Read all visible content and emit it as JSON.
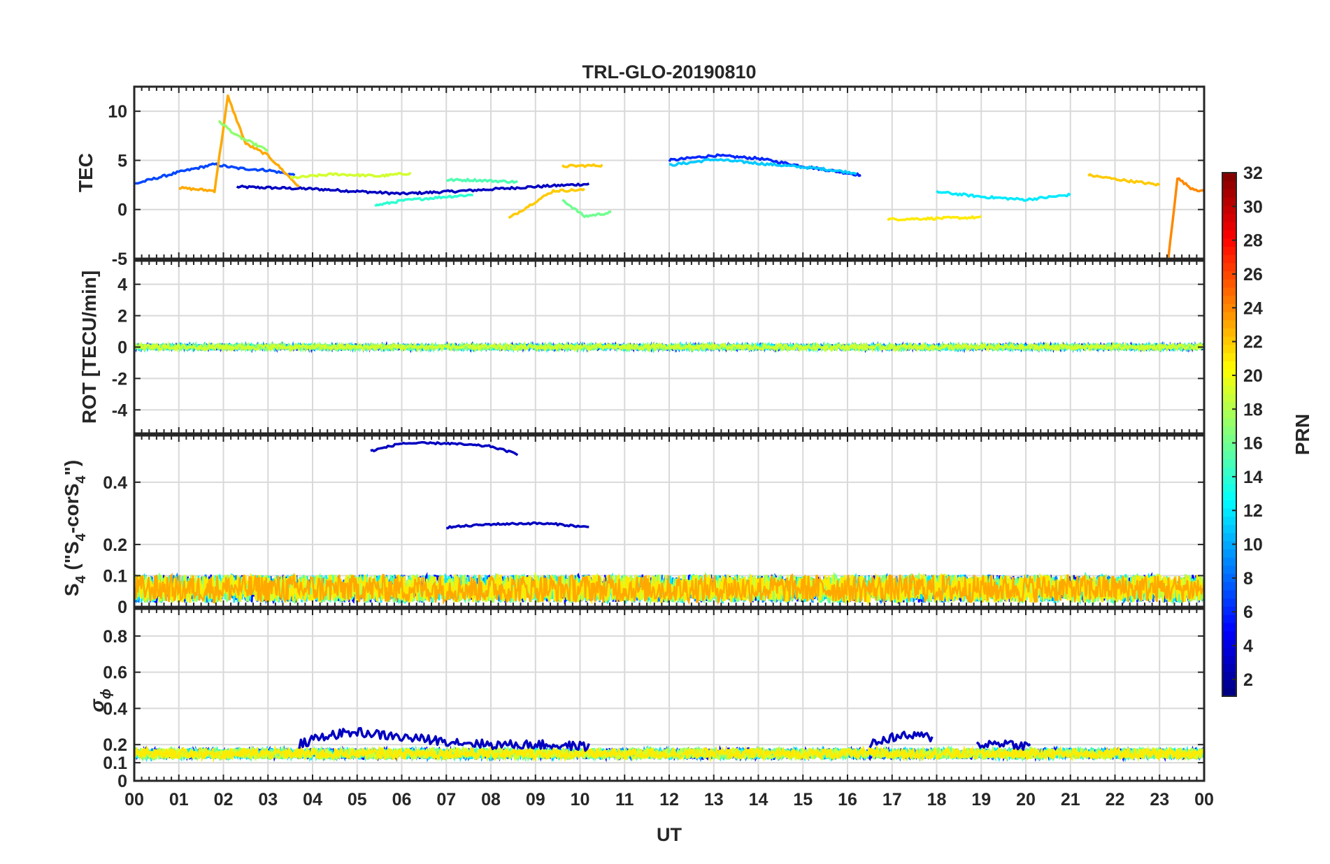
{
  "title": "TRL-GLO-20190810",
  "xlabel": "UT",
  "x_ticks": [
    "00",
    "01",
    "02",
    "03",
    "04",
    "05",
    "06",
    "07",
    "08",
    "09",
    "10",
    "11",
    "12",
    "13",
    "14",
    "15",
    "16",
    "17",
    "18",
    "19",
    "20",
    "21",
    "22",
    "23",
    "00"
  ],
  "colorbar": {
    "label": "PRN",
    "range": [
      1,
      32
    ],
    "ticks": [
      "2",
      "4",
      "6",
      "8",
      "10",
      "12",
      "14",
      "16",
      "18",
      "20",
      "22",
      "24",
      "26",
      "28",
      "30",
      "32"
    ],
    "colormap": "jet"
  },
  "chart_data": [
    {
      "type": "line",
      "name": "tec",
      "ylabel": "TEC",
      "xlim": [
        0,
        24
      ],
      "ylim": [
        -5,
        12.5
      ],
      "yticks": [
        "-5",
        "0",
        "5",
        "10"
      ],
      "grid": true,
      "series": [
        {
          "prn": 3,
          "x": [
            2.3,
            4,
            6,
            7.4,
            8.9,
            10.2
          ],
          "values": [
            2.3,
            2.1,
            1.6,
            1.9,
            2.3,
            2.6
          ]
        },
        {
          "prn": 7,
          "x": [
            0,
            1,
            1.8,
            2.3,
            3,
            3.6
          ],
          "values": [
            2.6,
            3.8,
            4.6,
            4.2,
            4.0,
            3.5
          ]
        },
        {
          "prn": 6,
          "x": [
            12,
            13,
            14,
            15,
            16.3
          ],
          "values": [
            5.0,
            5.5,
            5.2,
            4.4,
            3.5
          ]
        },
        {
          "prn": 11,
          "x": [
            12,
            13,
            14,
            15.5,
            16.2
          ],
          "values": [
            4.5,
            5.1,
            4.7,
            4.1,
            3.7
          ]
        },
        {
          "prn": 23,
          "x": [
            1,
            1.8,
            2.1,
            2.5,
            3,
            3.7
          ],
          "values": [
            2.2,
            1.9,
            11.5,
            6.7,
            5.5,
            2.3
          ]
        },
        {
          "prn": 17,
          "x": [
            1.9,
            2.3,
            3
          ],
          "values": [
            9.0,
            7.5,
            6.0
          ]
        },
        {
          "prn": 19,
          "x": [
            3.5,
            4.5,
            5.5,
            6.2
          ],
          "values": [
            3.2,
            3.6,
            3.4,
            3.7
          ]
        },
        {
          "prn": 14,
          "x": [
            5.4,
            6,
            7,
            7.6
          ],
          "values": [
            0.4,
            0.9,
            1.3,
            1.5
          ]
        },
        {
          "prn": 15,
          "x": [
            7,
            7.6,
            8.6
          ],
          "values": [
            3.0,
            3.0,
            2.8
          ]
        },
        {
          "prn": 22,
          "x": [
            8.4,
            9,
            9.4,
            10.1
          ],
          "values": [
            -0.9,
            0.8,
            1.9,
            2.0
          ]
        },
        {
          "prn": 16,
          "x": [
            9.6,
            10.1,
            10.7
          ],
          "values": [
            1.0,
            -0.7,
            -0.3
          ]
        },
        {
          "prn": 22,
          "x": [
            9.6,
            10.5
          ],
          "values": [
            4.4,
            4.5
          ]
        },
        {
          "prn": 21,
          "x": [
            16.9,
            18,
            19
          ],
          "values": [
            -1,
            -0.9,
            -0.8
          ]
        },
        {
          "prn": 12,
          "x": [
            18,
            19,
            20,
            21
          ],
          "values": [
            1.8,
            1.3,
            1.0,
            1.5
          ]
        },
        {
          "prn": 22,
          "x": [
            21.4,
            22,
            23
          ],
          "values": [
            3.5,
            3.1,
            2.5
          ]
        },
        {
          "prn": 24,
          "x": [
            23.2,
            23.4,
            23.7,
            24
          ],
          "values": [
            -4.9,
            3.2,
            2.2,
            1.8
          ]
        }
      ]
    },
    {
      "type": "line",
      "name": "rot",
      "ylabel": "ROT [TECU/min]",
      "xlim": [
        0,
        24
      ],
      "ylim": [
        -5.5,
        5.5
      ],
      "yticks": [
        "-4",
        "-2",
        "0",
        "2",
        "4"
      ],
      "grid": true,
      "note_values": "all series fluctuate within about ±0.3 around 0"
    },
    {
      "type": "line",
      "name": "s4",
      "ylabel": "S4 (\"S4-corS4\")",
      "xlim": [
        0,
        24
      ],
      "ylim": [
        0,
        0.55
      ],
      "yticks": [
        "0",
        "0.1",
        "0.2",
        "0.4"
      ],
      "grid": true,
      "series": [
        {
          "prn": 3,
          "x": [
            5.3,
            6,
            7,
            8,
            8.6
          ],
          "values": [
            0.5,
            0.525,
            0.525,
            0.515,
            0.49
          ]
        },
        {
          "prn": 3,
          "x": [
            7,
            8,
            9,
            9.5,
            10.2
          ],
          "values": [
            0.255,
            0.265,
            0.268,
            0.265,
            0.255
          ]
        }
      ],
      "background_noise": "many PRN series fluctuating between 0 and ~0.15 over 00-24 UT"
    },
    {
      "type": "line",
      "name": "sigma_phi",
      "ylabel": "σ ϕ",
      "xlim": [
        0,
        24
      ],
      "ylim": [
        0,
        0.95
      ],
      "yticks": [
        "0",
        "0.1",
        "0.2",
        "0.4",
        "0.6",
        "0.8"
      ],
      "grid": true,
      "series": [
        {
          "prn": 3,
          "x": [
            3.7,
            4.3,
            5,
            6,
            7,
            8,
            9,
            10.2
          ],
          "values": [
            0.2,
            0.25,
            0.27,
            0.24,
            0.22,
            0.2,
            0.2,
            0.19
          ]
        },
        {
          "prn": 3,
          "x": [
            16.5,
            17,
            17.5,
            17.9
          ],
          "values": [
            0.2,
            0.24,
            0.25,
            0.24
          ]
        },
        {
          "prn": 3,
          "x": [
            18.9,
            19.5,
            20.1
          ],
          "values": [
            0.2,
            0.21,
            0.19
          ]
        }
      ],
      "baseline": "most series near 0.12-0.2"
    }
  ]
}
